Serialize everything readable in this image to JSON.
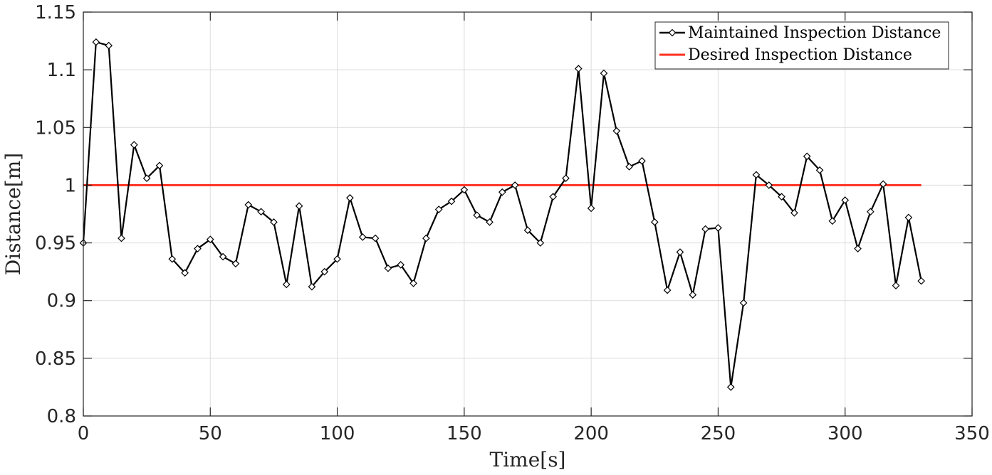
{
  "chart_data": {
    "type": "line",
    "xlabel": "Time[s]",
    "ylabel": "Distance[m]",
    "xlim": [
      0,
      350
    ],
    "ylim": [
      0.8,
      1.15
    ],
    "xticks": [
      0,
      50,
      100,
      150,
      200,
      250,
      300,
      350
    ],
    "yticks": [
      0.8,
      0.85,
      0.9,
      0.95,
      1,
      1.05,
      1.1,
      1.15
    ],
    "xtick_labels": [
      "0",
      "50",
      "100",
      "150",
      "200",
      "250",
      "300",
      "350"
    ],
    "ytick_labels": [
      "0.8",
      "0.85",
      "0.9",
      "0.95",
      "1",
      "1.05",
      "1.1",
      "1.15"
    ],
    "grid": true,
    "legend_position": "top-right",
    "series": [
      {
        "name": "Maintained Inspection Distance",
        "color": "#000000",
        "marker": "diamond",
        "x": [
          0,
          5,
          10,
          15,
          20,
          25,
          30,
          35,
          40,
          45,
          50,
          55,
          60,
          65,
          70,
          75,
          80,
          85,
          90,
          95,
          100,
          105,
          110,
          115,
          120,
          125,
          130,
          135,
          140,
          145,
          150,
          155,
          160,
          165,
          170,
          175,
          180,
          185,
          190,
          195,
          200,
          205,
          210,
          215,
          220,
          225,
          230,
          235,
          240,
          245,
          250,
          255,
          260,
          265,
          270,
          275,
          280,
          285,
          290,
          295,
          300,
          305,
          310,
          315,
          320,
          325,
          330
        ],
        "y": [
          0.95,
          1.124,
          1.121,
          0.954,
          1.035,
          1.006,
          1.017,
          0.936,
          0.924,
          0.945,
          0.953,
          0.938,
          0.932,
          0.983,
          0.977,
          0.968,
          0.914,
          0.982,
          0.912,
          0.925,
          0.936,
          0.989,
          0.955,
          0.954,
          0.928,
          0.931,
          0.915,
          0.954,
          0.979,
          0.986,
          0.996,
          0.974,
          0.968,
          0.994,
          1.0,
          0.961,
          0.95,
          0.99,
          1.006,
          1.101,
          0.98,
          1.097,
          1.047,
          1.016,
          1.021,
          0.968,
          0.909,
          0.942,
          0.905,
          0.962,
          0.963,
          0.825,
          0.898,
          1.009,
          1.0,
          0.99,
          0.976,
          1.025,
          1.013,
          0.969,
          0.987,
          0.945,
          0.977,
          1.001,
          0.913,
          0.972,
          0.917
        ]
      },
      {
        "name": "Desired Inspection Distance",
        "color": "#ff2f1f",
        "x": [
          0,
          330
        ],
        "y": [
          1.0,
          1.0
        ]
      }
    ]
  }
}
